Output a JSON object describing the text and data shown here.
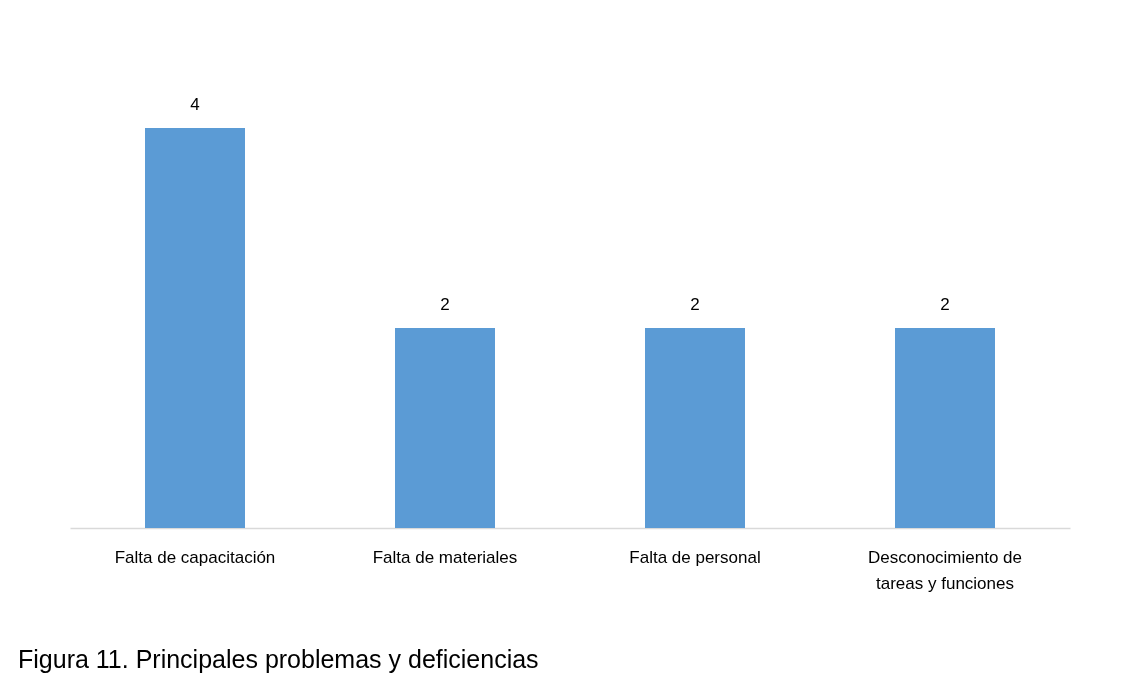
{
  "chart_data": {
    "type": "bar",
    "categories": [
      "Falta de capacitación",
      "Falta de materiales",
      "Falta de personal",
      "Desconocimiento de tareas y funciones"
    ],
    "values": [
      4,
      2,
      2,
      2
    ],
    "color": "#5b9bd5",
    "data_labels": true,
    "grid": false,
    "annotations": [
      "Figura 11.  Principales problemas y deficiencias"
    ]
  }
}
